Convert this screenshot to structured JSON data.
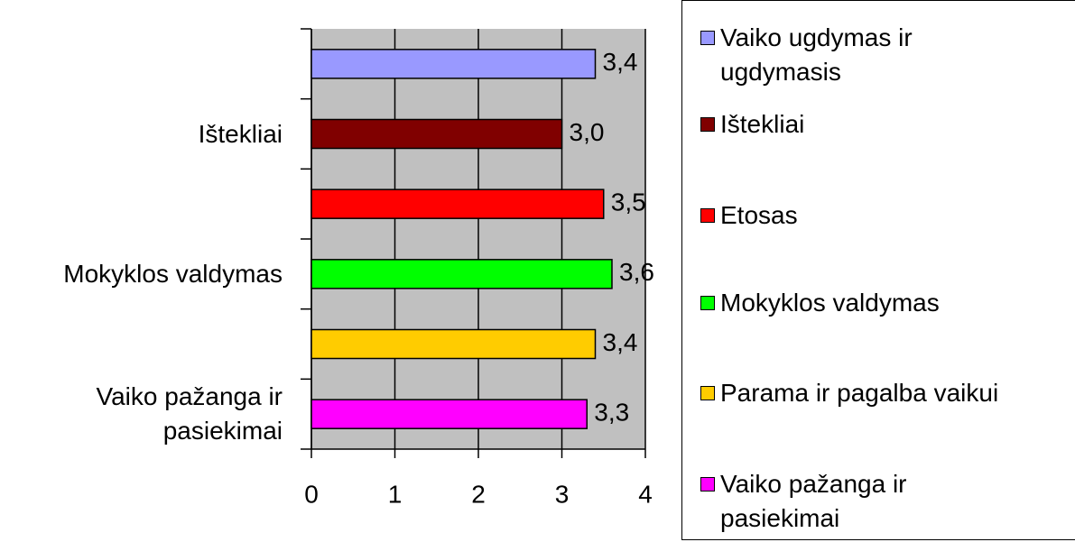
{
  "chart_data": {
    "type": "hbar",
    "categories": [
      null,
      "Ištekliai",
      null,
      "Mokyklos valdymas",
      null,
      "Vaiko pažanga ir pasiekimai"
    ],
    "values": [
      3.4,
      3.0,
      3.5,
      3.6,
      3.4,
      3.3
    ],
    "value_labels": [
      "3,4",
      "3,0",
      "3,5",
      "3,6",
      "3,4",
      "3,3"
    ],
    "colors": [
      "#9999ff",
      "#800000",
      "#ff0000",
      "#00ff00",
      "#ffcc00",
      "#ff00ff"
    ],
    "legend": [
      "Vaiko ugdymas ir ugdymasis",
      "Ištekliai",
      "Etosas",
      "Mokyklos valdymas",
      "Parama ir pagalba vaikui",
      "Vaiko pažanga ir pasiekimai"
    ],
    "xlim": [
      0,
      4
    ],
    "xticks": [
      0,
      1,
      2,
      3,
      4
    ],
    "grid": true,
    "legend_position": "right"
  }
}
